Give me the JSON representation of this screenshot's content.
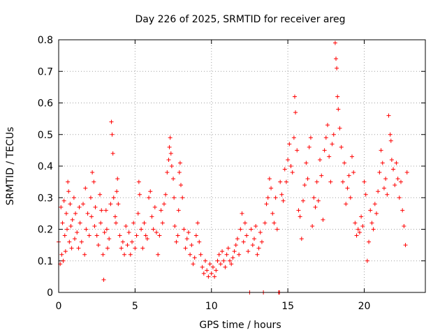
{
  "chart_data": {
    "type": "scatter",
    "title": "Day 226 of 2025, SRMTID for receiver areg",
    "xlabel": "GPS time / hours",
    "ylabel": "SRMTID / TECUs",
    "xlim": [
      0,
      24
    ],
    "ylim": [
      0,
      0.8
    ],
    "x_ticks": [
      0,
      5,
      10,
      15,
      20
    ],
    "y_ticks": [
      0,
      0.1,
      0.2,
      0.3,
      0.4,
      0.5,
      0.6,
      0.7,
      0.8
    ],
    "x_tick_labels": [
      "0",
      "5",
      "10",
      "15",
      "20"
    ],
    "y_tick_labels": [
      "0",
      "0.1",
      "0.2",
      "0.3",
      "0.4",
      "0.5",
      "0.6",
      "0.7",
      "0.8"
    ],
    "grid": true,
    "marker": "+",
    "color": "#ff0000",
    "series": [
      {
        "name": "SRMTID",
        "points": [
          [
            0.0,
            0.16
          ],
          [
            0.1,
            0.09
          ],
          [
            0.15,
            0.27
          ],
          [
            0.2,
            0.12
          ],
          [
            0.25,
            0.22
          ],
          [
            0.3,
            0.1
          ],
          [
            0.35,
            0.29
          ],
          [
            0.4,
            0.18
          ],
          [
            0.45,
            0.13
          ],
          [
            0.5,
            0.25
          ],
          [
            0.55,
            0.2
          ],
          [
            0.6,
            0.35
          ],
          [
            0.65,
            0.32
          ],
          [
            0.7,
            0.16
          ],
          [
            0.75,
            0.28
          ],
          [
            0.8,
            0.21
          ],
          [
            0.85,
            0.14
          ],
          [
            0.9,
            0.23
          ],
          [
            1.0,
            0.3
          ],
          [
            1.05,
            0.17
          ],
          [
            1.1,
            0.25
          ],
          [
            1.2,
            0.19
          ],
          [
            1.3,
            0.14
          ],
          [
            1.35,
            0.27
          ],
          [
            1.4,
            0.22
          ],
          [
            1.5,
            0.16
          ],
          [
            1.6,
            0.28
          ],
          [
            1.7,
            0.12
          ],
          [
            1.75,
            0.33
          ],
          [
            1.8,
            0.2
          ],
          [
            1.9,
            0.25
          ],
          [
            2.0,
            0.18
          ],
          [
            2.1,
            0.3
          ],
          [
            2.15,
            0.24
          ],
          [
            2.2,
            0.38
          ],
          [
            2.3,
            0.35
          ],
          [
            2.35,
            0.21
          ],
          [
            2.4,
            0.27
          ],
          [
            2.5,
            0.18
          ],
          [
            2.6,
            0.15
          ],
          [
            2.7,
            0.31
          ],
          [
            2.75,
            0.22
          ],
          [
            2.8,
            0.26
          ],
          [
            2.9,
            0.12
          ],
          [
            2.95,
            0.04
          ],
          [
            3.0,
            0.19
          ],
          [
            3.1,
            0.26
          ],
          [
            3.15,
            0.2
          ],
          [
            3.2,
            0.14
          ],
          [
            3.3,
            0.17
          ],
          [
            3.4,
            0.28
          ],
          [
            3.45,
            0.54
          ],
          [
            3.5,
            0.5
          ],
          [
            3.55,
            0.44
          ],
          [
            3.6,
            0.3
          ],
          [
            3.7,
            0.24
          ],
          [
            3.75,
            0.22
          ],
          [
            3.8,
            0.32
          ],
          [
            3.85,
            0.36
          ],
          [
            3.9,
            0.28
          ],
          [
            4.0,
            0.18
          ],
          [
            4.1,
            0.14
          ],
          [
            4.2,
            0.16
          ],
          [
            4.3,
            0.12
          ],
          [
            4.4,
            0.21
          ],
          [
            4.5,
            0.15
          ],
          [
            4.6,
            0.19
          ],
          [
            4.7,
            0.12
          ],
          [
            4.8,
            0.16
          ],
          [
            4.9,
            0.22
          ],
          [
            5.0,
            0.14
          ],
          [
            5.1,
            0.18
          ],
          [
            5.2,
            0.25
          ],
          [
            5.25,
            0.35
          ],
          [
            5.3,
            0.31
          ],
          [
            5.4,
            0.2
          ],
          [
            5.5,
            0.14
          ],
          [
            5.6,
            0.22
          ],
          [
            5.7,
            0.18
          ],
          [
            5.8,
            0.17
          ],
          [
            5.9,
            0.3
          ],
          [
            6.0,
            0.32
          ],
          [
            6.1,
            0.24
          ],
          [
            6.2,
            0.2
          ],
          [
            6.3,
            0.27
          ],
          [
            6.4,
            0.19
          ],
          [
            6.5,
            0.12
          ],
          [
            6.6,
            0.18
          ],
          [
            6.7,
            0.26
          ],
          [
            6.8,
            0.22
          ],
          [
            6.9,
            0.28
          ],
          [
            7.0,
            0.31
          ],
          [
            7.1,
            0.38
          ],
          [
            7.2,
            0.42
          ],
          [
            7.25,
            0.46
          ],
          [
            7.3,
            0.49
          ],
          [
            7.35,
            0.44
          ],
          [
            7.4,
            0.4
          ],
          [
            7.5,
            0.36
          ],
          [
            7.55,
            0.3
          ],
          [
            7.6,
            0.21
          ],
          [
            7.7,
            0.16
          ],
          [
            7.8,
            0.18
          ],
          [
            7.85,
            0.26
          ],
          [
            7.9,
            0.38
          ],
          [
            7.95,
            0.41
          ],
          [
            8.0,
            0.34
          ],
          [
            8.1,
            0.3
          ],
          [
            8.2,
            0.2
          ],
          [
            8.3,
            0.14
          ],
          [
            8.4,
            0.17
          ],
          [
            8.5,
            0.19
          ],
          [
            8.6,
            0.12
          ],
          [
            8.7,
            0.15
          ],
          [
            8.8,
            0.09
          ],
          [
            8.9,
            0.11
          ],
          [
            9.0,
            0.18
          ],
          [
            9.1,
            0.22
          ],
          [
            9.2,
            0.16
          ],
          [
            9.3,
            0.12
          ],
          [
            9.4,
            0.08
          ],
          [
            9.5,
            0.06
          ],
          [
            9.6,
            0.1
          ],
          [
            9.7,
            0.07
          ],
          [
            9.8,
            0.05
          ],
          [
            9.9,
            0.09
          ],
          [
            10.0,
            0.06
          ],
          [
            10.1,
            0.08
          ],
          [
            10.2,
            0.05
          ],
          [
            10.3,
            0.07
          ],
          [
            10.4,
            0.1
          ],
          [
            10.5,
            0.12
          ],
          [
            10.6,
            0.09
          ],
          [
            10.7,
            0.13
          ],
          [
            10.8,
            0.1
          ],
          [
            10.9,
            0.08
          ],
          [
            11.0,
            0.12
          ],
          [
            11.1,
            0.14
          ],
          [
            11.2,
            0.1
          ],
          [
            11.3,
            0.09
          ],
          [
            11.4,
            0.11
          ],
          [
            11.5,
            0.13
          ],
          [
            11.6,
            0.15
          ],
          [
            11.7,
            0.17
          ],
          [
            11.8,
            0.12
          ],
          [
            11.9,
            0.2
          ],
          [
            12.0,
            0.25
          ],
          [
            12.1,
            0.16
          ],
          [
            12.2,
            0.22
          ],
          [
            12.3,
            0.18
          ],
          [
            12.4,
            0.13
          ],
          [
            12.5,
            0.0
          ],
          [
            12.6,
            0.2
          ],
          [
            12.7,
            0.15
          ],
          [
            12.8,
            0.17
          ],
          [
            12.9,
            0.21
          ],
          [
            13.0,
            0.12
          ],
          [
            13.1,
            0.14
          ],
          [
            13.2,
            0.19
          ],
          [
            13.3,
            0.16
          ],
          [
            13.4,
            0.0
          ],
          [
            13.5,
            0.22
          ],
          [
            13.6,
            0.28
          ],
          [
            13.7,
            0.3
          ],
          [
            13.8,
            0.36
          ],
          [
            13.9,
            0.33
          ],
          [
            14.0,
            0.25
          ],
          [
            14.1,
            0.22
          ],
          [
            14.2,
            0.3
          ],
          [
            14.3,
            0.2
          ],
          [
            14.4,
            0.0
          ],
          [
            14.45,
            0.0
          ],
          [
            14.5,
            0.35
          ],
          [
            14.6,
            0.31
          ],
          [
            14.7,
            0.29
          ],
          [
            14.8,
            0.39
          ],
          [
            14.9,
            0.35
          ],
          [
            15.0,
            0.42
          ],
          [
            15.1,
            0.47
          ],
          [
            15.2,
            0.4
          ],
          [
            15.3,
            0.38
          ],
          [
            15.4,
            0.49
          ],
          [
            15.45,
            0.62
          ],
          [
            15.5,
            0.57
          ],
          [
            15.6,
            0.45
          ],
          [
            15.7,
            0.26
          ],
          [
            15.8,
            0.24
          ],
          [
            15.9,
            0.17
          ],
          [
            16.0,
            0.29
          ],
          [
            16.1,
            0.34
          ],
          [
            16.2,
            0.41
          ],
          [
            16.3,
            0.36
          ],
          [
            16.4,
            0.46
          ],
          [
            16.5,
            0.49
          ],
          [
            16.6,
            0.21
          ],
          [
            16.7,
            0.3
          ],
          [
            16.8,
            0.27
          ],
          [
            16.9,
            0.35
          ],
          [
            17.0,
            0.29
          ],
          [
            17.1,
            0.42
          ],
          [
            17.2,
            0.37
          ],
          [
            17.3,
            0.23
          ],
          [
            17.4,
            0.45
          ],
          [
            17.5,
            0.49
          ],
          [
            17.6,
            0.53
          ],
          [
            17.7,
            0.43
          ],
          [
            17.8,
            0.35
          ],
          [
            17.9,
            0.47
          ],
          [
            18.0,
            0.5
          ],
          [
            18.1,
            0.79
          ],
          [
            18.15,
            0.74
          ],
          [
            18.2,
            0.71
          ],
          [
            18.25,
            0.62
          ],
          [
            18.3,
            0.58
          ],
          [
            18.4,
            0.52
          ],
          [
            18.5,
            0.46
          ],
          [
            18.6,
            0.35
          ],
          [
            18.7,
            0.41
          ],
          [
            18.8,
            0.28
          ],
          [
            18.9,
            0.33
          ],
          [
            19.0,
            0.37
          ],
          [
            19.1,
            0.3
          ],
          [
            19.2,
            0.43
          ],
          [
            19.3,
            0.38
          ],
          [
            19.4,
            0.22
          ],
          [
            19.5,
            0.18
          ],
          [
            19.6,
            0.2
          ],
          [
            19.7,
            0.19
          ],
          [
            19.8,
            0.24
          ],
          [
            19.9,
            0.21
          ],
          [
            20.0,
            0.35
          ],
          [
            20.1,
            0.31
          ],
          [
            20.2,
            0.1
          ],
          [
            20.3,
            0.16
          ],
          [
            20.4,
            0.26
          ],
          [
            20.5,
            0.22
          ],
          [
            20.6,
            0.2
          ],
          [
            20.7,
            0.28
          ],
          [
            20.8,
            0.25
          ],
          [
            20.9,
            0.32
          ],
          [
            21.0,
            0.38
          ],
          [
            21.1,
            0.45
          ],
          [
            21.2,
            0.41
          ],
          [
            21.3,
            0.33
          ],
          [
            21.4,
            0.36
          ],
          [
            21.5,
            0.31
          ],
          [
            21.6,
            0.56
          ],
          [
            21.7,
            0.5
          ],
          [
            21.75,
            0.48
          ],
          [
            21.8,
            0.42
          ],
          [
            21.9,
            0.39
          ],
          [
            22.0,
            0.34
          ],
          [
            22.1,
            0.41
          ],
          [
            22.2,
            0.36
          ],
          [
            22.3,
            0.3
          ],
          [
            22.4,
            0.35
          ],
          [
            22.5,
            0.26
          ],
          [
            22.6,
            0.21
          ],
          [
            22.7,
            0.15
          ],
          [
            22.8,
            0.38
          ]
        ]
      }
    ]
  }
}
